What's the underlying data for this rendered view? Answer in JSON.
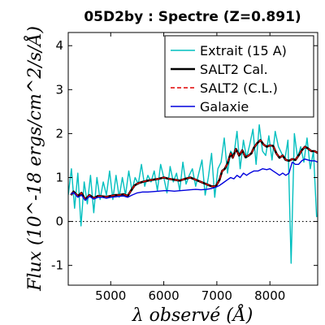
{
  "chart_data": {
    "type": "line",
    "title": "05D2by : Spectre (Z=0.891)",
    "xlabel": "λ observé (Å)",
    "ylabel": "Flux (10^-18 ergs/cm^2/s/Å)",
    "xlim": [
      4200,
      8900
    ],
    "ylim": [
      -1.45,
      4.3
    ],
    "xticks": [
      5000,
      6000,
      7000,
      8000
    ],
    "xtick_labels": [
      "5000",
      "6000",
      "7000",
      "8000"
    ],
    "yticks": [
      4,
      3,
      2,
      1,
      0,
      -1
    ],
    "ytick_labels": [
      "4",
      "3",
      "2",
      "1",
      "0",
      "-1"
    ],
    "zero_line": true,
    "grid": false,
    "legend_position": "top-right",
    "series": [
      {
        "name": "Extrait (15 A)",
        "color": "#00bfbf",
        "style": "solid",
        "x": [
          4200,
          4260,
          4320,
          4380,
          4440,
          4500,
          4560,
          4620,
          4680,
          4740,
          4800,
          4860,
          4920,
          4980,
          5040,
          5100,
          5160,
          5220,
          5280,
          5340,
          5400,
          5460,
          5520,
          5580,
          5640,
          5700,
          5760,
          5820,
          5880,
          5940,
          6000,
          6060,
          6120,
          6180,
          6240,
          6300,
          6360,
          6420,
          6480,
          6540,
          6600,
          6660,
          6720,
          6780,
          6840,
          6900,
          6960,
          7020,
          7080,
          7140,
          7200,
          7260,
          7320,
          7380,
          7440,
          7500,
          7560,
          7620,
          7680,
          7740,
          7800,
          7860,
          7920,
          7980,
          8040,
          8100,
          8160,
          8220,
          8280,
          8340,
          8400,
          8460,
          8520,
          8580,
          8640,
          8700,
          8760,
          8820,
          8880
        ],
        "y": [
          0.6,
          1.2,
          0.3,
          1.1,
          -0.1,
          0.9,
          0.4,
          1.05,
          0.2,
          1.0,
          0.5,
          0.9,
          0.6,
          1.15,
          0.5,
          1.05,
          0.55,
          1.0,
          0.6,
          1.15,
          0.7,
          1.0,
          0.85,
          1.3,
          0.8,
          1.05,
          0.9,
          1.15,
          0.7,
          1.3,
          1.0,
          0.65,
          1.25,
          0.9,
          1.1,
          0.7,
          1.35,
          0.85,
          1.05,
          1.2,
          0.8,
          1.1,
          1.4,
          0.6,
          1.0,
          1.55,
          0.55,
          1.2,
          1.35,
          1.9,
          1.1,
          1.6,
          1.5,
          2.05,
          1.2,
          1.85,
          1.45,
          1.75,
          2.1,
          1.3,
          2.2,
          1.6,
          1.5,
          1.95,
          1.4,
          2.05,
          1.7,
          1.55,
          1.4,
          1.85,
          -0.95,
          2.0,
          1.45,
          1.7,
          1.35,
          1.9,
          1.2,
          1.6,
          0.1
        ]
      },
      {
        "name": "SALT2 Cal.",
        "color": "#000000",
        "style": "solid",
        "x": [
          4250,
          4300,
          4380,
          4450,
          4520,
          4600,
          4680,
          4760,
          4840,
          4920,
          5000,
          5080,
          5160,
          5240,
          5320,
          5380,
          5450,
          5520,
          5600,
          5700,
          5800,
          5900,
          6000,
          6100,
          6200,
          6300,
          6400,
          6500,
          6600,
          6700,
          6800,
          6900,
          6980,
          7050,
          7100,
          7150,
          7200,
          7260,
          7300,
          7360,
          7420,
          7480,
          7540,
          7600,
          7650,
          7700,
          7760,
          7820,
          7880,
          7940,
          8000,
          8060,
          8120,
          8180,
          8240,
          8300,
          8360,
          8420,
          8480,
          8540,
          8600,
          8660,
          8720,
          8780,
          8840,
          8900
        ],
        "y": [
          0.6,
          0.68,
          0.58,
          0.65,
          0.5,
          0.6,
          0.53,
          0.58,
          0.57,
          0.56,
          0.58,
          0.6,
          0.6,
          0.62,
          0.58,
          0.7,
          0.82,
          0.87,
          0.9,
          0.93,
          0.95,
          0.97,
          1.0,
          0.97,
          0.95,
          0.93,
          0.97,
          1.0,
          0.95,
          0.9,
          0.85,
          0.8,
          0.8,
          0.95,
          1.15,
          1.2,
          1.32,
          1.55,
          1.45,
          1.65,
          1.5,
          1.62,
          1.46,
          1.5,
          1.55,
          1.68,
          1.78,
          1.85,
          1.75,
          1.7,
          1.73,
          1.72,
          1.55,
          1.45,
          1.5,
          1.4,
          1.38,
          1.42,
          1.4,
          1.5,
          1.62,
          1.7,
          1.66,
          1.6,
          1.6,
          1.56
        ]
      },
      {
        "name": "SALT2 (C.L.)",
        "color": "#e00000",
        "style": "dashed",
        "x": [
          4250,
          4300,
          4380,
          4450,
          4520,
          4600,
          4680,
          4760,
          4840,
          4920,
          5000,
          5080,
          5160,
          5240,
          5320,
          5380,
          5450,
          5520,
          5600,
          5700,
          5800,
          5900,
          6000,
          6100,
          6200,
          6300,
          6400,
          6500,
          6600,
          6700,
          6800,
          6900,
          6980,
          7050,
          7100,
          7150,
          7200,
          7260,
          7300,
          7360,
          7420,
          7480,
          7540,
          7600,
          7650,
          7700,
          7760,
          7820,
          7880,
          7940,
          8000,
          8060,
          8120,
          8180,
          8240,
          8300,
          8360,
          8420,
          8480,
          8540,
          8600,
          8660,
          8720,
          8780,
          8840,
          8900
        ],
        "y": [
          0.6,
          0.68,
          0.58,
          0.65,
          0.5,
          0.6,
          0.53,
          0.58,
          0.57,
          0.56,
          0.58,
          0.6,
          0.6,
          0.62,
          0.58,
          0.7,
          0.82,
          0.87,
          0.9,
          0.93,
          0.95,
          0.97,
          1.0,
          0.97,
          0.95,
          0.93,
          0.97,
          1.0,
          0.95,
          0.9,
          0.85,
          0.8,
          0.8,
          0.95,
          1.15,
          1.2,
          1.32,
          1.55,
          1.45,
          1.65,
          1.5,
          1.62,
          1.46,
          1.5,
          1.55,
          1.68,
          1.78,
          1.85,
          1.75,
          1.7,
          1.73,
          1.72,
          1.55,
          1.45,
          1.5,
          1.4,
          1.38,
          1.42,
          1.4,
          1.5,
          1.62,
          1.7,
          1.66,
          1.6,
          1.6,
          1.56
        ]
      },
      {
        "name": "Galaxie",
        "color": "#0000dd",
        "style": "solid",
        "x": [
          4250,
          4300,
          4380,
          4450,
          4520,
          4600,
          4680,
          4760,
          4840,
          4920,
          5000,
          5080,
          5160,
          5240,
          5320,
          5400,
          5500,
          5600,
          5700,
          5800,
          5900,
          6000,
          6100,
          6200,
          6300,
          6400,
          6500,
          6600,
          6700,
          6800,
          6900,
          6980,
          7050,
          7120,
          7200,
          7260,
          7320,
          7380,
          7440,
          7500,
          7560,
          7620,
          7700,
          7780,
          7860,
          7940,
          8000,
          8060,
          8120,
          8180,
          8240,
          8300,
          8360,
          8420,
          8480,
          8540,
          8600,
          8660,
          8720,
          8780,
          8840,
          8900
        ],
        "y": [
          0.62,
          0.66,
          0.55,
          0.6,
          0.48,
          0.57,
          0.51,
          0.55,
          0.55,
          0.53,
          0.55,
          0.56,
          0.57,
          0.58,
          0.55,
          0.6,
          0.65,
          0.67,
          0.67,
          0.68,
          0.69,
          0.7,
          0.7,
          0.69,
          0.7,
          0.71,
          0.72,
          0.73,
          0.72,
          0.73,
          0.75,
          0.78,
          0.82,
          0.88,
          0.95,
          1.0,
          0.97,
          1.05,
          1.0,
          1.1,
          1.05,
          1.1,
          1.15,
          1.15,
          1.2,
          1.18,
          1.2,
          1.15,
          1.1,
          1.05,
          1.1,
          1.05,
          1.1,
          1.35,
          1.3,
          1.3,
          1.38,
          1.42,
          1.4,
          1.38,
          1.38,
          1.35
        ]
      }
    ]
  }
}
